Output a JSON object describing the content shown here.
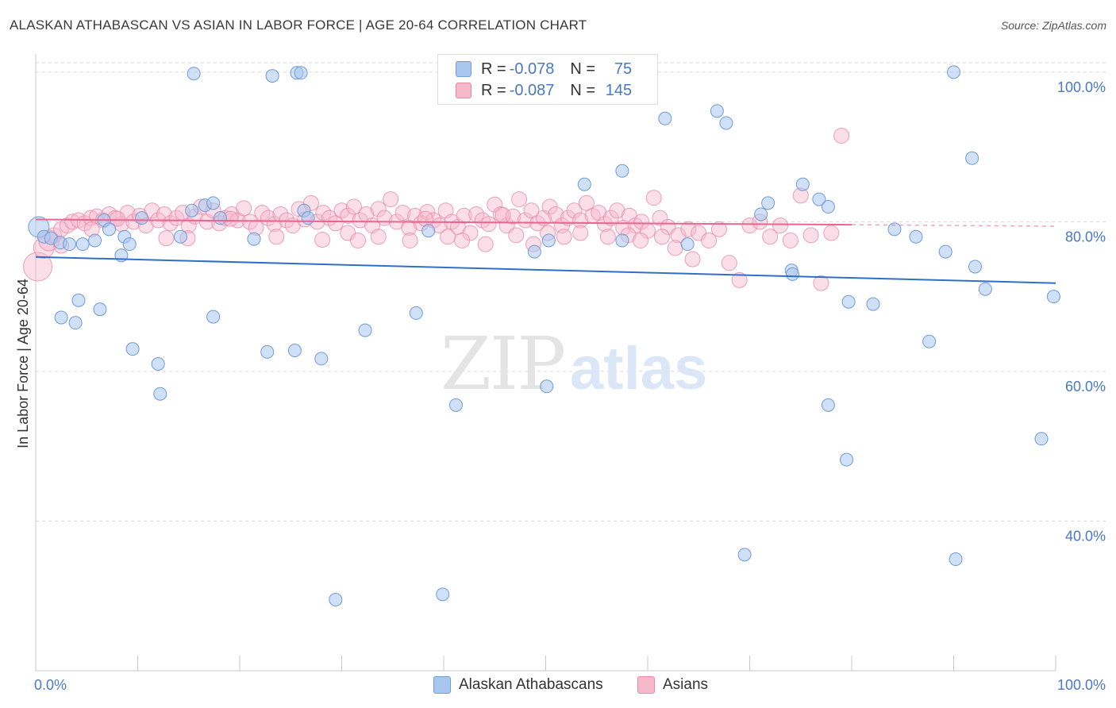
{
  "title": "ALASKAN ATHABASCAN VS ASIAN IN LABOR FORCE | AGE 20-64 CORRELATION CHART",
  "source": "Source: ZipAtlas.com",
  "watermark": {
    "zip": "ZIP",
    "atlas": "atlas"
  },
  "legend_top": [
    {
      "r_label": "R =",
      "r_value": "-0.078",
      "n_label": "N =",
      "n_value": "75"
    },
    {
      "r_label": "R =",
      "r_value": "-0.087",
      "n_label": "N =",
      "n_value": "145"
    }
  ],
  "legend_bottom": [
    "Alaskan Athabascans",
    "Asians"
  ],
  "colors": {
    "blue_fill": "#a9c6ee",
    "blue_stroke": "#6f9bd8",
    "blue_line": "#2f6fc9",
    "pink_fill": "#f7b8cc",
    "pink_stroke": "#e98aa8",
    "pink_line": "#e8668f",
    "axis_text": "#4a78c4",
    "grid": "#d8d8d8"
  },
  "chart_data": {
    "type": "scatter",
    "title": "ALASKAN ATHABASCAN VS ASIAN IN LABOR FORCE | AGE 20-64 CORRELATION CHART",
    "xlabel": "",
    "ylabel": "In Labor Force | Age 20-64",
    "xlim": [
      0,
      100
    ],
    "ylim": [
      20,
      102
    ],
    "x_tick_labels": [
      "0.0%",
      "100.0%"
    ],
    "y_ticks": [
      40,
      60,
      80,
      100
    ],
    "y_tick_labels": [
      "40.0%",
      "60.0%",
      "80.0%",
      "100.0%"
    ],
    "series": [
      {
        "name": "Alaskan Athabascans",
        "r": -0.078,
        "n": 75,
        "trend": {
          "x": [
            0,
            100
          ],
          "y": [
            75.3,
            71.8
          ]
        },
        "points": [
          [
            0.3,
            79.3
          ],
          [
            0.8,
            78.0
          ],
          [
            1.5,
            77.8
          ],
          [
            2.4,
            77.2
          ],
          [
            3.3,
            77.0
          ],
          [
            4.6,
            77.0
          ],
          [
            5.8,
            77.5
          ],
          [
            6.7,
            80.2
          ],
          [
            7.2,
            79.0
          ],
          [
            8.4,
            75.5
          ],
          [
            8.7,
            78.0
          ],
          [
            9.2,
            77.0
          ],
          [
            10.4,
            80.5
          ],
          [
            14.2,
            78.0
          ],
          [
            15.3,
            81.5
          ],
          [
            16.6,
            82.2
          ],
          [
            17.4,
            82.5
          ],
          [
            18.1,
            80.5
          ],
          [
            21.4,
            77.7
          ],
          [
            26.3,
            81.5
          ],
          [
            26.7,
            80.5
          ],
          [
            38.5,
            78.8
          ],
          [
            48.9,
            76.0
          ],
          [
            50.3,
            77.5
          ],
          [
            53.8,
            85.0
          ],
          [
            57.5,
            86.8
          ],
          [
            63.9,
            77.0
          ],
          [
            71.1,
            81.0
          ],
          [
            71.8,
            82.5
          ],
          [
            74.1,
            73.5
          ],
          [
            74.2,
            73.0
          ],
          [
            75.2,
            85.0
          ],
          [
            76.8,
            83.0
          ],
          [
            77.7,
            82.0
          ],
          [
            84.2,
            79.0
          ],
          [
            86.3,
            78.0
          ],
          [
            89.2,
            76.0
          ],
          [
            92.1,
            74.0
          ],
          [
            2.5,
            67.2
          ],
          [
            3.9,
            66.5
          ],
          [
            4.2,
            69.5
          ],
          [
            6.3,
            68.3
          ],
          [
            9.5,
            63.0
          ],
          [
            12.0,
            61.0
          ],
          [
            12.2,
            57.0
          ],
          [
            17.4,
            67.3
          ],
          [
            22.7,
            62.6
          ],
          [
            25.4,
            62.8
          ],
          [
            28.0,
            61.7
          ],
          [
            32.3,
            65.5
          ],
          [
            37.3,
            67.8
          ],
          [
            41.2,
            55.5
          ],
          [
            50.1,
            58.0
          ],
          [
            79.7,
            69.3
          ],
          [
            82.1,
            69.0
          ],
          [
            87.6,
            64.0
          ],
          [
            93.1,
            71.0
          ],
          [
            99.8,
            70.0
          ],
          [
            77.7,
            55.5
          ],
          [
            79.5,
            48.2
          ],
          [
            98.6,
            51.0
          ],
          [
            69.5,
            35.5
          ],
          [
            90.2,
            34.9
          ],
          [
            29.4,
            29.5
          ],
          [
            39.9,
            30.2
          ],
          [
            15.5,
            99.8
          ],
          [
            23.2,
            99.5
          ],
          [
            25.6,
            99.9
          ],
          [
            26.0,
            99.9
          ],
          [
            90.0,
            100.0
          ],
          [
            61.7,
            93.8
          ],
          [
            67.7,
            93.2
          ],
          [
            91.8,
            88.5
          ],
          [
            66.8,
            94.8
          ],
          [
            57.5,
            77.5
          ]
        ]
      },
      {
        "name": "Asians",
        "r": -0.087,
        "n": 145,
        "trend": {
          "x": [
            0,
            80
          ],
          "y": [
            80.3,
            79.6
          ]
        },
        "points": [
          [
            0.2,
            74.0
          ],
          [
            0.8,
            76.5
          ],
          [
            1.3,
            77.5
          ],
          [
            1.8,
            78.2
          ],
          [
            2.5,
            79.0
          ],
          [
            3.1,
            79.5
          ],
          [
            3.6,
            80.0
          ],
          [
            4.2,
            80.2
          ],
          [
            4.8,
            79.8
          ],
          [
            5.4,
            80.5
          ],
          [
            6.0,
            80.7
          ],
          [
            6.6,
            80.2
          ],
          [
            7.2,
            81.0
          ],
          [
            7.8,
            80.5
          ],
          [
            8.4,
            79.7
          ],
          [
            9.0,
            81.2
          ],
          [
            9.6,
            80.0
          ],
          [
            10.2,
            80.8
          ],
          [
            10.8,
            79.5
          ],
          [
            11.4,
            81.5
          ],
          [
            12.0,
            80.2
          ],
          [
            12.6,
            81.0
          ],
          [
            13.2,
            79.8
          ],
          [
            13.8,
            80.5
          ],
          [
            14.4,
            81.2
          ],
          [
            15.0,
            79.5
          ],
          [
            15.6,
            80.7
          ],
          [
            16.2,
            82.0
          ],
          [
            16.8,
            80.0
          ],
          [
            17.4,
            81.5
          ],
          [
            18.0,
            79.8
          ],
          [
            18.6,
            80.5
          ],
          [
            19.2,
            81.0
          ],
          [
            19.8,
            80.2
          ],
          [
            20.4,
            81.8
          ],
          [
            21.0,
            80.0
          ],
          [
            21.6,
            79.2
          ],
          [
            22.2,
            81.2
          ],
          [
            22.8,
            80.5
          ],
          [
            23.4,
            79.7
          ],
          [
            24.0,
            81.0
          ],
          [
            24.6,
            80.2
          ],
          [
            25.2,
            79.5
          ],
          [
            25.8,
            81.7
          ],
          [
            26.4,
            80.3
          ],
          [
            27.0,
            82.5
          ],
          [
            27.6,
            80.0
          ],
          [
            28.2,
            81.2
          ],
          [
            28.8,
            80.5
          ],
          [
            29.4,
            79.8
          ],
          [
            30.0,
            81.5
          ],
          [
            30.6,
            80.8
          ],
          [
            31.2,
            82.0
          ],
          [
            31.8,
            80.2
          ],
          [
            32.4,
            81.0
          ],
          [
            33.0,
            79.5
          ],
          [
            33.6,
            81.7
          ],
          [
            34.2,
            80.5
          ],
          [
            34.8,
            83.0
          ],
          [
            35.4,
            80.0
          ],
          [
            36.0,
            81.2
          ],
          [
            36.6,
            79.2
          ],
          [
            37.2,
            80.8
          ],
          [
            37.8,
            79.8
          ],
          [
            38.4,
            81.3
          ],
          [
            39.0,
            80.2
          ],
          [
            39.6,
            79.5
          ],
          [
            40.2,
            81.5
          ],
          [
            40.8,
            80.0
          ],
          [
            41.4,
            79.3
          ],
          [
            42.0,
            80.8
          ],
          [
            42.6,
            78.5
          ],
          [
            43.2,
            81.0
          ],
          [
            43.8,
            80.2
          ],
          [
            44.4,
            79.7
          ],
          [
            45.0,
            82.3
          ],
          [
            45.6,
            81.0
          ],
          [
            46.2,
            79.5
          ],
          [
            46.8,
            80.7
          ],
          [
            47.4,
            83.0
          ],
          [
            48.0,
            80.2
          ],
          [
            48.6,
            81.5
          ],
          [
            49.2,
            79.8
          ],
          [
            49.8,
            80.5
          ],
          [
            50.4,
            82.0
          ],
          [
            51.0,
            81.0
          ],
          [
            51.6,
            79.5
          ],
          [
            52.2,
            80.5
          ],
          [
            52.8,
            81.5
          ],
          [
            53.4,
            80.2
          ],
          [
            54.0,
            82.5
          ],
          [
            54.6,
            80.8
          ],
          [
            55.2,
            81.2
          ],
          [
            55.8,
            79.7
          ],
          [
            56.4,
            80.5
          ],
          [
            57.0,
            81.5
          ],
          [
            57.6,
            79.2
          ],
          [
            58.2,
            80.8
          ],
          [
            58.8,
            79.5
          ],
          [
            59.4,
            80.0
          ],
          [
            60.0,
            78.8
          ],
          [
            60.6,
            83.2
          ],
          [
            61.2,
            80.5
          ],
          [
            62.0,
            79.3
          ],
          [
            63.0,
            78.2
          ],
          [
            64.0,
            79.0
          ],
          [
            65.0,
            78.5
          ],
          [
            66.0,
            77.5
          ],
          [
            67.0,
            79.0
          ],
          [
            68.0,
            74.5
          ],
          [
            69.0,
            72.2
          ],
          [
            70.0,
            79.5
          ],
          [
            71.0,
            80.0
          ],
          [
            72.0,
            78.0
          ],
          [
            73.0,
            79.5
          ],
          [
            74.0,
            77.5
          ],
          [
            75.0,
            83.5
          ],
          [
            76.0,
            78.2
          ],
          [
            77.0,
            71.8
          ],
          [
            78.0,
            78.5
          ],
          [
            79.0,
            91.5
          ],
          [
            2.5,
            76.8
          ],
          [
            5.5,
            79.0
          ],
          [
            8.0,
            80.4
          ],
          [
            12.8,
            77.8
          ],
          [
            14.9,
            77.8
          ],
          [
            19.1,
            80.4
          ],
          [
            23.6,
            78.0
          ],
          [
            28.1,
            77.6
          ],
          [
            30.6,
            78.5
          ],
          [
            31.6,
            77.5
          ],
          [
            33.6,
            78.0
          ],
          [
            36.7,
            77.5
          ],
          [
            38.2,
            80.4
          ],
          [
            40.4,
            78.0
          ],
          [
            41.8,
            77.5
          ],
          [
            44.1,
            77.0
          ],
          [
            45.8,
            80.9
          ],
          [
            47.1,
            78.2
          ],
          [
            48.8,
            77.0
          ],
          [
            50.2,
            78.5
          ],
          [
            51.8,
            78.0
          ],
          [
            53.4,
            78.5
          ],
          [
            56.1,
            78.0
          ],
          [
            58.1,
            78.2
          ],
          [
            59.3,
            77.5
          ],
          [
            61.4,
            78.0
          ],
          [
            62.7,
            76.5
          ],
          [
            64.4,
            75.0
          ]
        ]
      }
    ]
  }
}
